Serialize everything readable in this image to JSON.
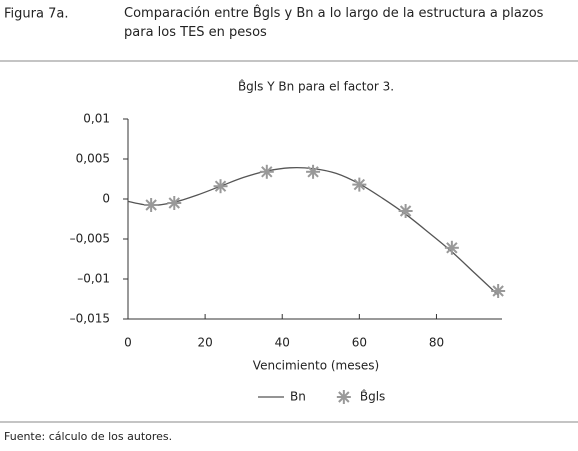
{
  "figure": {
    "label": "Figura 7a.",
    "caption": "Comparación entre B̂gls y Bn a lo largo de la estructura a plazos para los TES en pesos"
  },
  "chart_data": {
    "type": "line",
    "title": "B̂gls Y Bn para el factor 3.",
    "xlabel": "Vencimiento (meses)",
    "xlim": [
      0,
      97
    ],
    "xticks": [
      0,
      20,
      40,
      60,
      80
    ],
    "ylim": [
      -0.015,
      0.01
    ],
    "yticks": [
      {
        "value": 0.01,
        "label": "0,01"
      },
      {
        "value": 0.005,
        "label": "0,005"
      },
      0,
      {
        "value": -0.005,
        "label": "–0,005"
      },
      {
        "value": -0.01,
        "label": "–0,01"
      },
      {
        "value": -0.015,
        "label": "–0,015"
      }
    ],
    "series": [
      {
        "name": "Bn",
        "color": "#555555",
        "marker": "none",
        "x": [
          0,
          6,
          12,
          18,
          24,
          30,
          36,
          42,
          48,
          54,
          60,
          66,
          72,
          78,
          84,
          90,
          96
        ],
        "values": [
          -0.0003,
          -0.0008,
          -0.0004,
          0.0005,
          0.0016,
          0.0027,
          0.0035,
          0.0039,
          0.0038,
          0.0032,
          0.0019,
          0.0001,
          -0.0019,
          -0.0042,
          -0.0066,
          -0.0093,
          -0.012
        ]
      },
      {
        "name": "B̂gls",
        "color": "#999999",
        "marker": "star",
        "x": [
          6,
          12,
          24,
          36,
          48,
          60,
          72,
          84,
          96
        ],
        "values": [
          -0.00075,
          -0.0005,
          0.0016,
          0.0034,
          0.0034,
          0.0018,
          -0.0015,
          -0.0061,
          -0.0115
        ]
      }
    ]
  },
  "source": "Fuente: cálculo de los autores."
}
